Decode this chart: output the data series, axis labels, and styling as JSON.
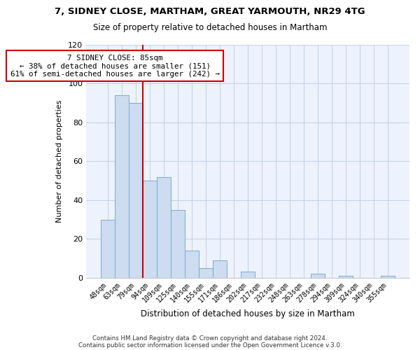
{
  "title": "7, SIDNEY CLOSE, MARTHAM, GREAT YARMOUTH, NR29 4TG",
  "subtitle": "Size of property relative to detached houses in Martham",
  "xlabel": "Distribution of detached houses by size in Martham",
  "ylabel": "Number of detached properties",
  "bar_labels": [
    "48sqm",
    "63sqm",
    "79sqm",
    "94sqm",
    "109sqm",
    "125sqm",
    "140sqm",
    "155sqm",
    "171sqm",
    "186sqm",
    "202sqm",
    "217sqm",
    "232sqm",
    "248sqm",
    "263sqm",
    "278sqm",
    "294sqm",
    "309sqm",
    "324sqm",
    "340sqm",
    "355sqm"
  ],
  "bar_values": [
    30,
    94,
    90,
    50,
    52,
    35,
    14,
    5,
    9,
    0,
    3,
    0,
    0,
    0,
    0,
    2,
    0,
    1,
    0,
    0,
    1
  ],
  "bar_color": "#cddcf0",
  "bar_edge_color": "#7aabcf",
  "annotation_box_text": "7 SIDNEY CLOSE: 85sqm\n← 38% of detached houses are smaller (151)\n61% of semi-detached houses are larger (242) →",
  "vline_color": "#cc0000",
  "vline_x_bin": 2.5,
  "ylim": [
    0,
    120
  ],
  "yticks": [
    0,
    20,
    40,
    60,
    80,
    100,
    120
  ],
  "footer1": "Contains HM Land Registry data © Crown copyright and database right 2024.",
  "footer2": "Contains public sector information licensed under the Open Government Licence v.3.0.",
  "bg_color": "#eef2fc",
  "grid_color": "#c5d3ea",
  "plot_bg": "#eef2fc"
}
